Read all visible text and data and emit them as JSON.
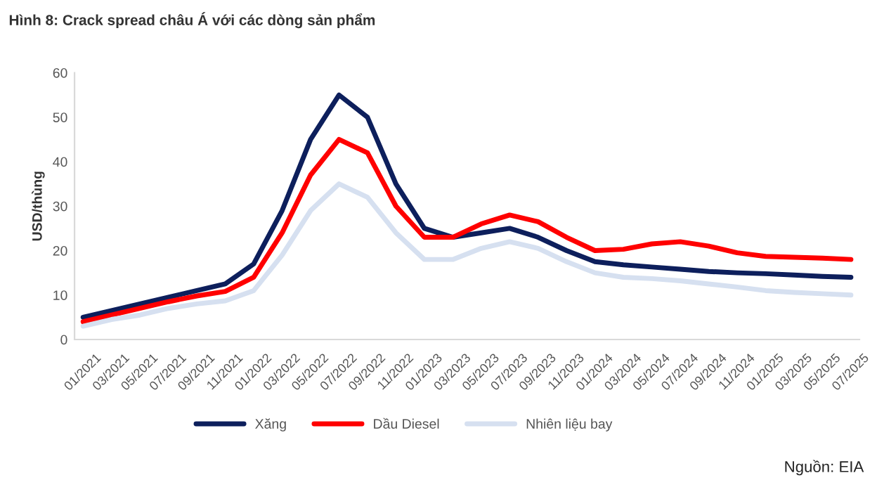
{
  "chart_data": {
    "type": "line",
    "title": "Hình 8: Crack spread châu Á với các dòng sản phẩm",
    "ylabel": "USD/thùng",
    "categories": [
      "01/2021",
      "03/2021",
      "05/2021",
      "07/2021",
      "09/2021",
      "11/2021",
      "01/2022",
      "03/2022",
      "05/2022",
      "07/2022",
      "09/2022",
      "11/2022",
      "01/2023",
      "03/2023",
      "05/2023",
      "07/2023",
      "09/2023",
      "11/2023",
      "01/2024",
      "03/2024",
      "05/2024",
      "07/2024",
      "09/2024",
      "11/2024",
      "01/2025",
      "03/2025",
      "05/2025",
      "07/2025"
    ],
    "series": [
      {
        "name": "Xăng",
        "color": "#0d1f5c",
        "values": [
          5,
          6.5,
          8,
          9.5,
          11,
          12.5,
          17,
          29,
          45,
          55,
          50,
          35,
          25,
          23,
          24,
          25,
          23,
          20,
          17.5,
          16.8,
          16.3,
          15.8,
          15.3,
          15,
          14.8,
          14.5,
          14.2,
          14
        ]
      },
      {
        "name": "Dầu Diesel",
        "color": "#ff0000",
        "values": [
          4,
          5.5,
          7,
          8.5,
          9.8,
          10.8,
          14,
          24,
          37,
          45,
          42,
          30,
          23,
          23,
          26,
          28,
          26.5,
          23,
          20,
          20.3,
          21.5,
          22,
          21,
          19.5,
          18.7,
          18.5,
          18.3,
          18
        ]
      },
      {
        "name": "Nhiên liệu bay",
        "color": "#d6e0f0",
        "values": [
          3,
          4.5,
          5.5,
          7,
          8,
          8.7,
          11,
          19,
          29,
          35,
          32,
          24,
          18,
          18,
          20.5,
          22,
          20.5,
          17.5,
          15,
          14,
          13.7,
          13.2,
          12.5,
          11.8,
          11,
          10.6,
          10.3,
          10
        ]
      }
    ],
    "ylim": [
      0,
      60
    ],
    "yticks": [
      0,
      10,
      20,
      30,
      40,
      50,
      60
    ],
    "grid": false,
    "legend": "bottom",
    "annotations": [
      "Nguồn: EIA"
    ]
  }
}
